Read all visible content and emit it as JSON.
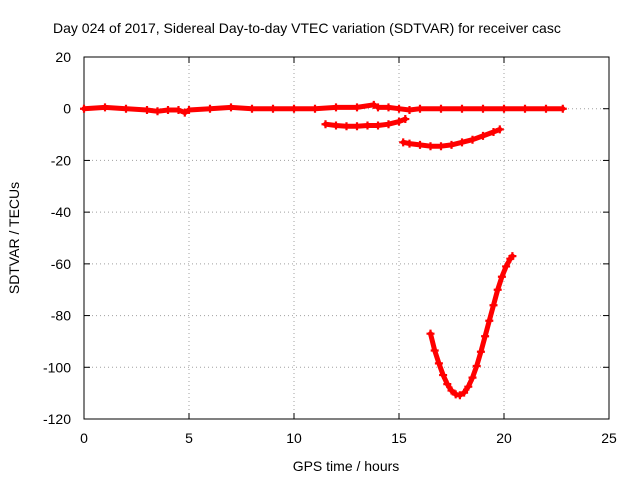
{
  "chart_data": {
    "type": "scatter",
    "title": "Day 024 of 2017, Sidereal Day-to-day VTEC variation (SDTVAR) for receiver casc",
    "xlabel": "GPS time / hours",
    "ylabel": "SDTVAR / TECUs",
    "xlim": [
      0,
      25
    ],
    "ylim": [
      -120,
      20
    ],
    "xticks": [
      "0",
      "5",
      "10",
      "15",
      "20",
      "25"
    ],
    "yticks": [
      "-120",
      "-100",
      "-80",
      "-60",
      "-40",
      "-20",
      "0",
      "20"
    ],
    "grid": true,
    "marker_color": "#ff0000",
    "series": [
      {
        "x": [
          0,
          1,
          2,
          3,
          3.5,
          4,
          4.5,
          4.8,
          5,
          6,
          7,
          8,
          9,
          10,
          11,
          12,
          13,
          13.8,
          14,
          14.5,
          15,
          15.5,
          16,
          17,
          18,
          19,
          20,
          21,
          22,
          22.8
        ],
        "y": [
          0,
          0.5,
          0,
          -0.5,
          -1,
          -0.5,
          -0.5,
          -1.5,
          -0.5,
          0,
          0.5,
          0,
          0,
          0,
          0,
          0.5,
          0.5,
          1.5,
          0.5,
          0.5,
          0,
          -0.5,
          0,
          0,
          0,
          0,
          0,
          0,
          0,
          0
        ]
      },
      {
        "x": [
          11.5,
          12,
          12.5,
          13,
          13.5,
          14,
          14.5,
          15,
          15.3
        ],
        "y": [
          -6,
          -6.5,
          -6.8,
          -6.8,
          -6.5,
          -6.5,
          -6,
          -5,
          -4
        ]
      },
      {
        "x": [
          15.2,
          15.5,
          16,
          16.5,
          17,
          17.5,
          18,
          18.5,
          19,
          19.5,
          19.8
        ],
        "y": [
          -13,
          -13.5,
          -14,
          -14.5,
          -14.5,
          -14,
          -13,
          -12,
          -10.5,
          -9,
          -8
        ]
      },
      {
        "x": [
          16.5,
          16.7,
          16.9,
          17.1,
          17.3,
          17.5,
          17.7,
          17.9,
          18.1,
          18.3,
          18.5,
          18.7,
          18.9,
          19.1,
          19.3,
          19.5,
          19.7,
          19.9,
          20.1,
          20.3,
          20.4
        ],
        "y": [
          -87,
          -93.5,
          -98.5,
          -103,
          -106.5,
          -109,
          -110.5,
          -110.8,
          -109.8,
          -107.5,
          -104,
          -99.5,
          -94,
          -88,
          -82,
          -76,
          -70,
          -65,
          -61,
          -58,
          -57
        ]
      }
    ]
  }
}
